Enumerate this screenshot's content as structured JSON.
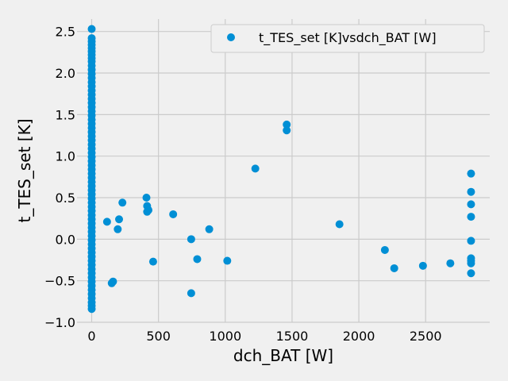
{
  "chart_data": {
    "type": "scatter",
    "xlabel": "dch_BAT [W]",
    "ylabel": "t_TES_set [K]",
    "xlim": [
      -110,
      2980
    ],
    "ylim": [
      -1.0,
      2.65
    ],
    "xticks": [
      0,
      500,
      1000,
      1500,
      2000,
      2500
    ],
    "yticks": [
      -1.0,
      -0.5,
      0.0,
      0.5,
      1.0,
      1.5,
      2.0,
      2.5
    ],
    "xtick_labels": [
      "0",
      "500",
      "1000",
      "1500",
      "2000",
      "2500"
    ],
    "ytick_labels": [
      "−1.0",
      "−0.5",
      "0.0",
      "0.5",
      "1.0",
      "1.5",
      "2.0",
      "2.5"
    ],
    "grid": true,
    "legend_position": "top-right",
    "marker_color": "#008fd5",
    "series": [
      {
        "name": "t_TES_set [K]vsdch_BAT [W]",
        "points": [
          [
            0,
            2.53
          ],
          [
            0,
            2.42
          ],
          [
            0,
            2.38
          ],
          [
            0,
            2.34
          ],
          [
            0,
            2.3
          ],
          [
            0,
            2.26
          ],
          [
            0,
            2.22
          ],
          [
            0,
            2.18
          ],
          [
            0,
            2.14
          ],
          [
            0,
            2.09
          ],
          [
            0,
            2.04
          ],
          [
            0,
            1.99
          ],
          [
            0,
            1.94
          ],
          [
            0,
            1.89
          ],
          [
            0,
            1.84
          ],
          [
            0,
            1.79
          ],
          [
            0,
            1.74
          ],
          [
            0,
            1.69
          ],
          [
            0,
            1.64
          ],
          [
            0,
            1.59
          ],
          [
            0,
            1.54
          ],
          [
            0,
            1.49
          ],
          [
            0,
            1.44
          ],
          [
            0,
            1.39
          ],
          [
            0,
            1.34
          ],
          [
            0,
            1.29
          ],
          [
            0,
            1.24
          ],
          [
            0,
            1.19
          ],
          [
            0,
            1.14
          ],
          [
            0,
            1.09
          ],
          [
            0,
            1.04
          ],
          [
            0,
            0.99
          ],
          [
            0,
            0.94
          ],
          [
            0,
            0.89
          ],
          [
            0,
            0.84
          ],
          [
            0,
            0.79
          ],
          [
            0,
            0.74
          ],
          [
            0,
            0.69
          ],
          [
            0,
            0.64
          ],
          [
            0,
            0.59
          ],
          [
            0,
            0.54
          ],
          [
            0,
            0.49
          ],
          [
            0,
            0.44
          ],
          [
            0,
            0.39
          ],
          [
            0,
            0.34
          ],
          [
            0,
            0.29
          ],
          [
            0,
            0.24
          ],
          [
            0,
            0.19
          ],
          [
            0,
            0.14
          ],
          [
            0,
            0.09
          ],
          [
            0,
            0.04
          ],
          [
            0,
            -0.01
          ],
          [
            0,
            -0.06
          ],
          [
            0,
            -0.11
          ],
          [
            0,
            -0.16
          ],
          [
            0,
            -0.21
          ],
          [
            0,
            -0.26
          ],
          [
            0,
            -0.31
          ],
          [
            0,
            -0.36
          ],
          [
            0,
            -0.41
          ],
          [
            0,
            -0.46
          ],
          [
            0,
            -0.51
          ],
          [
            0,
            -0.56
          ],
          [
            0,
            -0.61
          ],
          [
            0,
            -0.66
          ],
          [
            0,
            -0.71
          ],
          [
            0,
            -0.76
          ],
          [
            0,
            -0.8
          ],
          [
            0,
            -0.84
          ],
          [
            115,
            0.21
          ],
          [
            150,
            -0.53
          ],
          [
            160,
            -0.51
          ],
          [
            195,
            0.12
          ],
          [
            205,
            0.24
          ],
          [
            230,
            0.44
          ],
          [
            410,
            0.5
          ],
          [
            415,
            0.4
          ],
          [
            415,
            0.33
          ],
          [
            425,
            0.35
          ],
          [
            460,
            -0.27
          ],
          [
            610,
            0.3
          ],
          [
            745,
            0.0
          ],
          [
            745,
            -0.65
          ],
          [
            790,
            -0.24
          ],
          [
            880,
            0.12
          ],
          [
            1015,
            -0.26
          ],
          [
            1225,
            0.85
          ],
          [
            1460,
            1.38
          ],
          [
            1460,
            1.31
          ],
          [
            1855,
            0.18
          ],
          [
            2195,
            -0.13
          ],
          [
            2265,
            -0.35
          ],
          [
            2480,
            -0.32
          ],
          [
            2685,
            -0.29
          ],
          [
            2840,
            0.79
          ],
          [
            2840,
            0.57
          ],
          [
            2840,
            0.42
          ],
          [
            2840,
            0.27
          ],
          [
            2840,
            -0.02
          ],
          [
            2840,
            -0.23
          ],
          [
            2840,
            -0.26
          ],
          [
            2840,
            -0.29
          ],
          [
            2840,
            -0.41
          ]
        ]
      }
    ]
  }
}
